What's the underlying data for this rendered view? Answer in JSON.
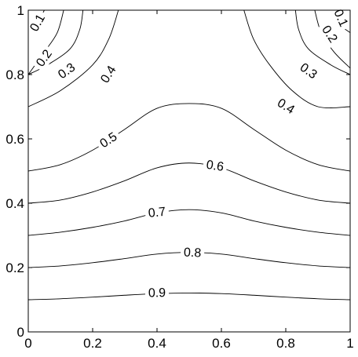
{
  "chart_data": {
    "type": "contour",
    "title": "",
    "xlabel": "",
    "ylabel": "",
    "xlim": [
      0,
      1
    ],
    "ylim": [
      0,
      1
    ],
    "grid": false,
    "x_ticks": [
      "0",
      "0.2",
      "0.4",
      "0.6",
      "0.8",
      "1"
    ],
    "y_ticks": [
      "0",
      "0.2",
      "0.4",
      "0.6",
      "0.8",
      "1"
    ],
    "line_color": "#000000",
    "contours": [
      {
        "level": 0.9,
        "label": "0.9",
        "branches": [
          {
            "points": [
              [
                0,
                0.1
              ],
              [
                0.1,
                0.103
              ],
              [
                0.2,
                0.108
              ],
              [
                0.3,
                0.114
              ],
              [
                0.4,
                0.119
              ],
              [
                0.5,
                0.121
              ],
              [
                0.6,
                0.119
              ],
              [
                0.7,
                0.114
              ],
              [
                0.8,
                0.108
              ],
              [
                0.9,
                0.103
              ],
              [
                1,
                0.1
              ]
            ],
            "labels": [
              {
                "x": 0.4,
                "y": 0.12
              }
            ]
          }
        ]
      },
      {
        "level": 0.8,
        "label": "0.8",
        "branches": [
          {
            "points": [
              [
                0,
                0.2
              ],
              [
                0.1,
                0.205
              ],
              [
                0.2,
                0.215
              ],
              [
                0.3,
                0.228
              ],
              [
                0.4,
                0.242
              ],
              [
                0.5,
                0.247
              ],
              [
                0.6,
                0.242
              ],
              [
                0.7,
                0.228
              ],
              [
                0.8,
                0.215
              ],
              [
                0.9,
                0.205
              ],
              [
                1,
                0.2
              ]
            ],
            "labels": [
              {
                "x": 0.51,
                "y": 0.245
              }
            ]
          }
        ]
      },
      {
        "level": 0.7,
        "label": "0.7",
        "branches": [
          {
            "points": [
              [
                0,
                0.3
              ],
              [
                0.1,
                0.31
              ],
              [
                0.2,
                0.325
              ],
              [
                0.3,
                0.345
              ],
              [
                0.4,
                0.37
              ],
              [
                0.5,
                0.38
              ],
              [
                0.6,
                0.37
              ],
              [
                0.7,
                0.345
              ],
              [
                0.8,
                0.325
              ],
              [
                0.9,
                0.31
              ],
              [
                1,
                0.3
              ]
            ],
            "labels": [
              {
                "x": 0.4,
                "y": 0.37
              }
            ]
          }
        ]
      },
      {
        "level": 0.6,
        "label": "0.6",
        "branches": [
          {
            "points": [
              [
                0,
                0.4
              ],
              [
                0.1,
                0.41
              ],
              [
                0.2,
                0.435
              ],
              [
                0.3,
                0.47
              ],
              [
                0.4,
                0.51
              ],
              [
                0.5,
                0.525
              ],
              [
                0.6,
                0.51
              ],
              [
                0.7,
                0.47
              ],
              [
                0.8,
                0.435
              ],
              [
                0.9,
                0.41
              ],
              [
                1,
                0.4
              ]
            ],
            "labels": [
              {
                "x": 0.58,
                "y": 0.515
              }
            ]
          }
        ]
      },
      {
        "level": 0.5,
        "label": "0.5",
        "branches": [
          {
            "points": [
              [
                0,
                0.5
              ],
              [
                0.1,
                0.52
              ],
              [
                0.2,
                0.565
              ],
              [
                0.3,
                0.63
              ],
              [
                0.4,
                0.695
              ],
              [
                0.5,
                0.71
              ],
              [
                0.6,
                0.695
              ],
              [
                0.7,
                0.63
              ],
              [
                0.8,
                0.565
              ],
              [
                0.9,
                0.52
              ],
              [
                1,
                0.5
              ]
            ],
            "labels": [
              {
                "x": 0.25,
                "y": 0.595
              }
            ]
          }
        ]
      },
      {
        "level": 0.4,
        "label": "0.4",
        "branches": [
          {
            "points": [
              [
                0,
                0.7
              ],
              [
                0.1,
                0.75
              ],
              [
                0.2,
                0.83
              ],
              [
                0.25,
                0.91
              ],
              [
                0.28,
                1.0
              ]
            ],
            "labels": [
              {
                "x": 0.25,
                "y": 0.8
              }
            ]
          },
          {
            "points": [
              [
                0.67,
                1.0
              ],
              [
                0.7,
                0.91
              ],
              [
                0.75,
                0.83
              ],
              [
                0.82,
                0.75
              ],
              [
                0.9,
                0.7
              ],
              [
                1,
                0.7
              ]
            ],
            "labels": [
              {
                "x": 0.8,
                "y": 0.7
              }
            ]
          }
        ]
      },
      {
        "level": 0.3,
        "label": "0.3",
        "branches": [
          {
            "points": [
              [
                0,
                0.8
              ],
              [
                0.06,
                0.83
              ],
              [
                0.13,
                0.88
              ],
              [
                0.16,
                0.94
              ],
              [
                0.17,
                1.0
              ]
            ],
            "labels": [
              {
                "x": 0.12,
                "y": 0.81
              }
            ]
          },
          {
            "points": [
              [
                0.83,
                1.0
              ],
              [
                0.84,
                0.94
              ],
              [
                0.87,
                0.88
              ],
              [
                0.94,
                0.83
              ],
              [
                1,
                0.8
              ]
            ],
            "labels": [
              {
                "x": 0.87,
                "y": 0.81
              }
            ]
          }
        ]
      },
      {
        "level": 0.2,
        "label": "0.2",
        "branches": [
          {
            "points": [
              [
                0,
                0.8
              ],
              [
                0.05,
                0.87
              ],
              [
                0.09,
                0.93
              ],
              [
                0.11,
                1.0
              ]
            ],
            "labels": [
              {
                "x": 0.05,
                "y": 0.85
              }
            ]
          },
          {
            "points": [
              [
                0.89,
                1.0
              ],
              [
                0.91,
                0.93
              ],
              [
                0.95,
                0.87
              ],
              [
                1,
                0.82
              ]
            ],
            "labels": [
              {
                "x": 0.935,
                "y": 0.925
              }
            ]
          }
        ]
      },
      {
        "level": 0.1,
        "label": "0.1",
        "branches": [
          {
            "points": [
              [
                0,
                0.94
              ],
              [
                0.025,
                0.955
              ],
              [
                0.05,
                1.0
              ]
            ],
            "labels": [
              {
                "x": 0.03,
                "y": 0.96
              }
            ]
          },
          {
            "points": [
              [
                0.95,
                1.0
              ],
              [
                0.97,
                0.955
              ],
              [
                1,
                0.93
              ]
            ],
            "labels": [
              {
                "x": 0.97,
                "y": 0.975
              }
            ]
          }
        ]
      }
    ]
  }
}
